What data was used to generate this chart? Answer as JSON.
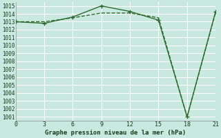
{
  "x": [
    0,
    3,
    6,
    9,
    12,
    15,
    18,
    21
  ],
  "line1": [
    1013.0,
    1012.8,
    1013.6,
    1015.0,
    1014.3,
    1013.2,
    1001.0,
    1014.3
  ],
  "line2": [
    1013.0,
    1013.0,
    1013.5,
    1014.1,
    1014.1,
    1013.5,
    1001.0,
    1014.2
  ],
  "line_color": "#2d6a2d",
  "bg_color": "#c8e8e0",
  "grid_color": "#b0d8d0",
  "xlabel": "Graphe pression niveau de la mer (hPa)",
  "xlim": [
    0,
    21
  ],
  "ylim": [
    1001,
    1015
  ],
  "yticks": [
    1001,
    1002,
    1003,
    1004,
    1005,
    1006,
    1007,
    1008,
    1009,
    1010,
    1011,
    1012,
    1013,
    1014,
    1015
  ],
  "xticks": [
    0,
    3,
    6,
    9,
    12,
    15,
    18,
    21
  ],
  "marker": "+"
}
